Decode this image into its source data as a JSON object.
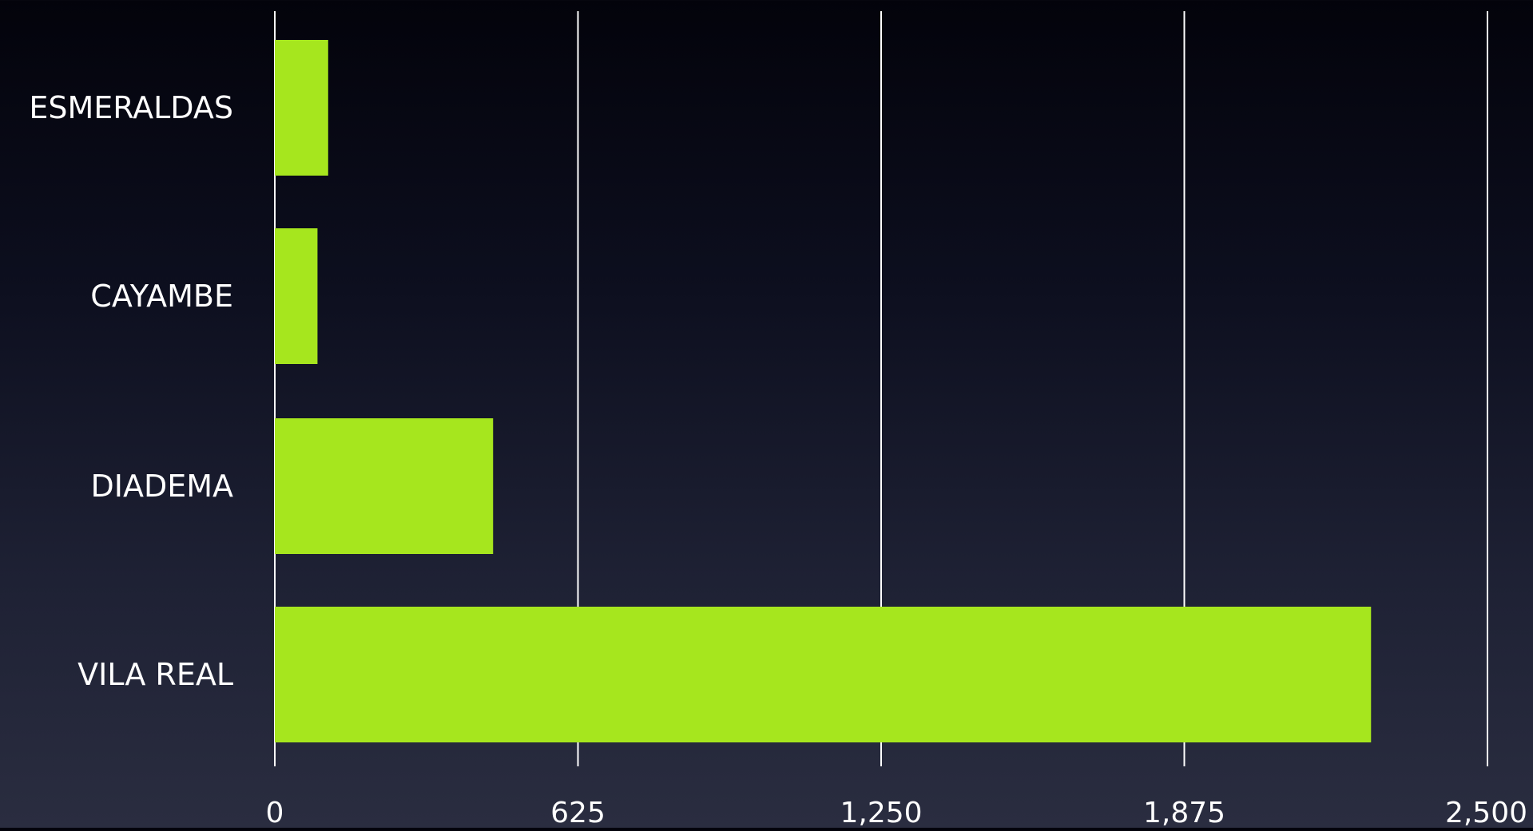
{
  "chart_data": {
    "type": "bar",
    "orientation": "horizontal",
    "categories": [
      "ESMERALDAS",
      "CAYAMBE",
      "DIADEMA",
      "VILA REAL"
    ],
    "values": [
      110,
      88,
      450,
      2260
    ],
    "xlim": [
      0,
      2500
    ],
    "xticks": [
      0,
      625,
      1250,
      1875,
      2500
    ],
    "xtick_labels": [
      "0",
      "625",
      "1,250",
      "1,875",
      "2,500"
    ],
    "grid": "vertical",
    "legend": "none"
  },
  "colors": {
    "bar": "#a6e61e",
    "grid": "#ffffff",
    "text": "#ffffff",
    "background_top": "#03030b",
    "background_bottom": "#2a2d40"
  }
}
